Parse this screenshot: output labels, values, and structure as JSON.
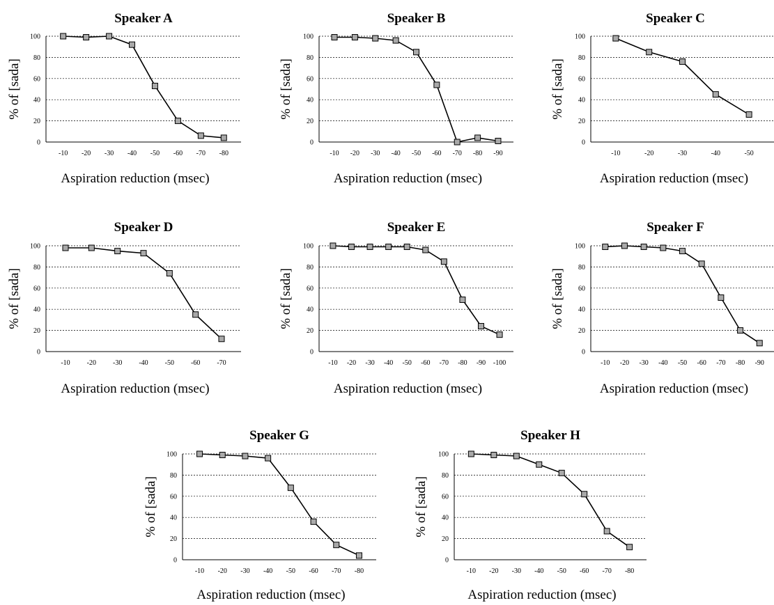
{
  "chart_data": [
    {
      "type": "line",
      "title": "Speaker A",
      "ylabel": "% of [sada]",
      "xlabel": "Aspiration reduction (msec)",
      "categories": [
        "-10",
        "-20",
        "-30",
        "-40",
        "-50",
        "-60",
        "-70",
        "-80"
      ],
      "series": [
        {
          "values": [
            100,
            99,
            100,
            92,
            53,
            20,
            6,
            4
          ]
        }
      ],
      "yticks": [
        "0",
        "20",
        "40",
        "60",
        "80",
        "100"
      ],
      "ylim": [
        0,
        100
      ],
      "grid": "horizontal"
    },
    {
      "type": "line",
      "title": "Speaker B",
      "ylabel": "% of [sada]",
      "xlabel": "Aspiration reduction (msec)",
      "categories": [
        "-10",
        "-20",
        "-30",
        "-40",
        "-50",
        "-60",
        "-70",
        "-80",
        "-90"
      ],
      "series": [
        {
          "values": [
            99,
            99,
            98,
            96,
            85,
            54,
            0,
            4,
            1
          ]
        }
      ],
      "yticks": [
        "0",
        "20",
        "40",
        "60",
        "80",
        "100"
      ],
      "ylim": [
        0,
        100
      ],
      "grid": "horizontal"
    },
    {
      "type": "line",
      "title": "Speaker C",
      "ylabel": "% of [sada]",
      "xlabel": "Aspiration reduction (msec)",
      "categories": [
        "-10",
        "-20",
        "-30",
        "-40",
        "-50"
      ],
      "series": [
        {
          "values": [
            98,
            85,
            76,
            45,
            26
          ]
        }
      ],
      "yticks": [
        "0",
        "20",
        "40",
        "60",
        "80",
        "100"
      ],
      "ylim": [
        0,
        100
      ],
      "grid": "horizontal"
    },
    {
      "type": "line",
      "title": "Speaker D",
      "ylabel": "% of [sada]",
      "xlabel": "Aspiration reduction (msec)",
      "categories": [
        "-10",
        "-20",
        "-30",
        "-40",
        "-50",
        "-60",
        "-70"
      ],
      "series": [
        {
          "values": [
            98,
            98,
            95,
            93,
            74,
            35,
            12
          ]
        }
      ],
      "yticks": [
        "0",
        "20",
        "40",
        "60",
        "80",
        "100"
      ],
      "ylim": [
        0,
        100
      ],
      "grid": "horizontal"
    },
    {
      "type": "line",
      "title": "Speaker E",
      "ylabel": "% of [sada]",
      "xlabel": "Aspiration reduction (msec)",
      "categories": [
        "-10",
        "-20",
        "-30",
        "-40",
        "-50",
        "-60",
        "-70",
        "-80",
        "-90",
        "-100"
      ],
      "series": [
        {
          "values": [
            100,
            99,
            99,
            99,
            99,
            96,
            85,
            49,
            24,
            16
          ]
        }
      ],
      "yticks": [
        "0",
        "20",
        "40",
        "60",
        "80",
        "100"
      ],
      "ylim": [
        0,
        100
      ],
      "grid": "horizontal"
    },
    {
      "type": "line",
      "title": "Speaker F",
      "ylabel": "% of [sada]",
      "xlabel": "Aspiration reduction (msec)",
      "categories": [
        "-10",
        "-20",
        "-30",
        "-40",
        "-50",
        "-60",
        "-70",
        "-80",
        "-90"
      ],
      "series": [
        {
          "values": [
            99,
            100,
            99,
            98,
            95,
            83,
            51,
            20,
            8
          ]
        }
      ],
      "yticks": [
        "0",
        "20",
        "40",
        "60",
        "80",
        "100"
      ],
      "ylim": [
        0,
        100
      ],
      "grid": "horizontal"
    },
    {
      "type": "line",
      "title": "Speaker G",
      "ylabel": "% of [sada]",
      "xlabel": "Aspiration reduction (msec)",
      "categories": [
        "-10",
        "-20",
        "-30",
        "-40",
        "-50",
        "-60",
        "-70",
        "-80"
      ],
      "series": [
        {
          "values": [
            100,
            99,
            98,
            96,
            68,
            36,
            14,
            4
          ]
        }
      ],
      "yticks": [
        "0",
        "20",
        "40",
        "60",
        "80",
        "100"
      ],
      "ylim": [
        0,
        100
      ],
      "grid": "horizontal"
    },
    {
      "type": "line",
      "title": "Speaker H",
      "ylabel": "% of [sada]",
      "xlabel": "Aspiration reduction (msec)",
      "categories": [
        "-10",
        "-20",
        "-30",
        "-40",
        "-50",
        "-60",
        "-70",
        "-80"
      ],
      "series": [
        {
          "values": [
            100,
            99,
            98,
            90,
            82,
            62,
            27,
            12
          ]
        }
      ],
      "yticks": [
        "0",
        "20",
        "40",
        "60",
        "80",
        "100"
      ],
      "ylim": [
        0,
        100
      ],
      "grid": "horizontal"
    }
  ]
}
